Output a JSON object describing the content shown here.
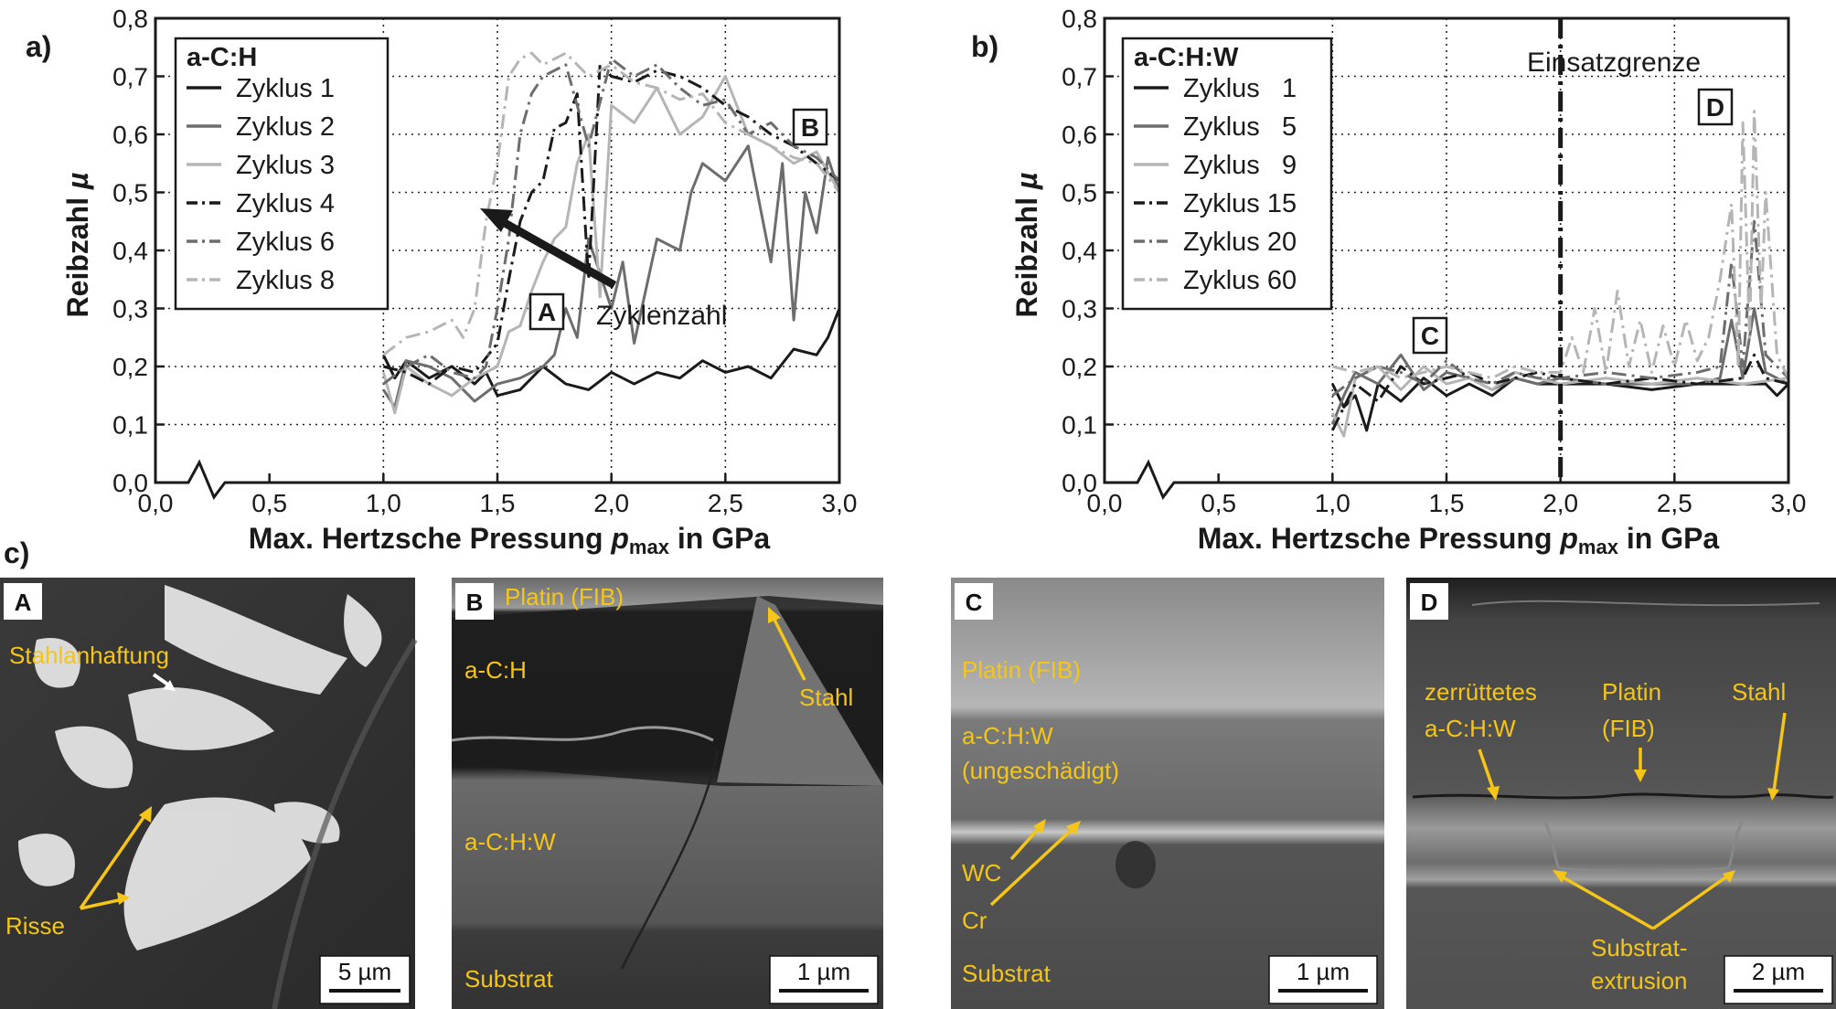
{
  "figure_labels": {
    "a": "a)",
    "b": "b)",
    "c": "c)"
  },
  "chart_data": [
    {
      "type": "line",
      "panel": "a)",
      "xlabel": "Max. Hertzsche Pressung p_max in GPa",
      "xlabel_parts": [
        "Max. Hertzsche Pressung ",
        "p",
        "max",
        " in GPa"
      ],
      "ylabel": "Reibzahl µ",
      "ylabel_parts": [
        "Reibzahl ",
        "µ"
      ],
      "xlim": [
        0,
        3.0
      ],
      "ylim": [
        0,
        0.8
      ],
      "x_ticks": [
        "0,0",
        "0,5",
        "1,0",
        "1,5",
        "2,0",
        "2,5",
        "3,0"
      ],
      "y_ticks": [
        "0,0",
        "0,1",
        "0,2",
        "0,3",
        "0,4",
        "0,5",
        "0,6",
        "0,7",
        "0,8"
      ],
      "axis_break": "0,0–1,0",
      "legend_title": "a-C:H",
      "series": [
        {
          "name": "Zyklus 1",
          "color": "#1a1a1a",
          "dash": "solid",
          "x": [
            1.0,
            1.05,
            1.1,
            1.2,
            1.3,
            1.4,
            1.45,
            1.5,
            1.6,
            1.7,
            1.8,
            1.9,
            2.0,
            2.1,
            2.2,
            2.3,
            2.4,
            2.5,
            2.6,
            2.7,
            2.8,
            2.9,
            2.95,
            3.0
          ],
          "y": [
            0.22,
            0.18,
            0.21,
            0.18,
            0.2,
            0.17,
            0.19,
            0.15,
            0.16,
            0.2,
            0.17,
            0.16,
            0.19,
            0.17,
            0.19,
            0.18,
            0.21,
            0.19,
            0.2,
            0.18,
            0.23,
            0.22,
            0.25,
            0.3
          ]
        },
        {
          "name": "Zyklus 2",
          "color": "#6d6d6d",
          "dash": "solid",
          "x": [
            1.0,
            1.05,
            1.1,
            1.2,
            1.3,
            1.4,
            1.5,
            1.6,
            1.7,
            1.75,
            1.8,
            1.85,
            1.9,
            2.0,
            2.05,
            2.1,
            2.2,
            2.3,
            2.35,
            2.4,
            2.5,
            2.6,
            2.7,
            2.75,
            2.8,
            2.85,
            2.9,
            2.95,
            3.0
          ],
          "y": [
            0.16,
            0.13,
            0.21,
            0.2,
            0.18,
            0.14,
            0.17,
            0.18,
            0.2,
            0.22,
            0.3,
            0.25,
            0.42,
            0.3,
            0.38,
            0.24,
            0.42,
            0.4,
            0.5,
            0.55,
            0.52,
            0.58,
            0.38,
            0.55,
            0.28,
            0.5,
            0.43,
            0.56,
            0.5
          ]
        },
        {
          "name": "Zyklus 3",
          "color": "#b5b5b5",
          "dash": "solid",
          "x": [
            1.0,
            1.05,
            1.1,
            1.2,
            1.3,
            1.4,
            1.5,
            1.55,
            1.6,
            1.65,
            1.7,
            1.75,
            1.8,
            1.85,
            1.9,
            1.95,
            2.0,
            2.1,
            2.2,
            2.3,
            2.4,
            2.5,
            2.6,
            2.7,
            2.8,
            2.9,
            3.0
          ],
          "y": [
            0.19,
            0.12,
            0.2,
            0.17,
            0.15,
            0.18,
            0.2,
            0.26,
            0.27,
            0.33,
            0.38,
            0.42,
            0.44,
            0.55,
            0.6,
            0.32,
            0.65,
            0.62,
            0.68,
            0.6,
            0.63,
            0.7,
            0.6,
            0.58,
            0.55,
            0.57,
            0.5
          ]
        },
        {
          "name": "Zyklus 4",
          "color": "#1a1a1a",
          "dash": "dashdot",
          "x": [
            1.0,
            1.1,
            1.2,
            1.3,
            1.4,
            1.5,
            1.55,
            1.6,
            1.65,
            1.7,
            1.75,
            1.8,
            1.85,
            1.9,
            1.95,
            2.0,
            2.1,
            2.2,
            2.3,
            2.4,
            2.5,
            2.6,
            2.7,
            2.8,
            2.9,
            3.0
          ],
          "y": [
            0.2,
            0.19,
            0.17,
            0.2,
            0.19,
            0.24,
            0.35,
            0.45,
            0.5,
            0.52,
            0.61,
            0.62,
            0.67,
            0.35,
            0.72,
            0.7,
            0.69,
            0.71,
            0.7,
            0.68,
            0.65,
            0.63,
            0.6,
            0.58,
            0.55,
            0.52
          ]
        },
        {
          "name": "Zyklus 6",
          "color": "#6d6d6d",
          "dash": "dashdot",
          "x": [
            1.0,
            1.1,
            1.2,
            1.3,
            1.4,
            1.45,
            1.5,
            1.55,
            1.6,
            1.65,
            1.7,
            1.8,
            1.9,
            2.0,
            2.1,
            2.2,
            2.3,
            2.4,
            2.5,
            2.6,
            2.7,
            2.8,
            2.9,
            3.0
          ],
          "y": [
            0.17,
            0.2,
            0.22,
            0.19,
            0.18,
            0.2,
            0.3,
            0.42,
            0.6,
            0.67,
            0.7,
            0.72,
            0.58,
            0.73,
            0.7,
            0.72,
            0.68,
            0.65,
            0.66,
            0.6,
            0.62,
            0.58,
            0.56,
            0.52
          ]
        },
        {
          "name": "Zyklus 8",
          "color": "#b5b5b5",
          "dash": "dashdot",
          "x": [
            1.0,
            1.1,
            1.2,
            1.3,
            1.35,
            1.4,
            1.45,
            1.5,
            1.55,
            1.6,
            1.65,
            1.7,
            1.8,
            1.9,
            2.0,
            2.1,
            2.2,
            2.3,
            2.4,
            2.5,
            2.6,
            2.7,
            2.8,
            2.9,
            3.0
          ],
          "y": [
            0.22,
            0.25,
            0.26,
            0.28,
            0.25,
            0.3,
            0.45,
            0.55,
            0.7,
            0.73,
            0.74,
            0.72,
            0.74,
            0.7,
            0.72,
            0.69,
            0.68,
            0.66,
            0.67,
            0.62,
            0.6,
            0.58,
            0.56,
            0.55,
            0.5
          ]
        }
      ],
      "annotations": [
        {
          "label": "A",
          "x": 1.85,
          "y": 0.3
        },
        {
          "label": "B",
          "x": 2.9,
          "y": 0.62
        },
        {
          "label": "Zyklenzahl",
          "type": "arrow",
          "from": [
            1.93,
            0.34
          ],
          "to": [
            1.68,
            0.47
          ]
        }
      ]
    },
    {
      "type": "line",
      "panel": "b)",
      "xlabel": "Max. Hertzsche Pressung p_max in GPa",
      "xlabel_parts": [
        "Max. Hertzsche Pressung ",
        "p",
        "max",
        " in GPa"
      ],
      "ylabel": "Reibzahl µ",
      "ylabel_parts": [
        "Reibzahl ",
        "µ"
      ],
      "xlim": [
        0,
        3.0
      ],
      "ylim": [
        0,
        0.8
      ],
      "x_ticks": [
        "0,0",
        "0,5",
        "1,0",
        "1,5",
        "2,0",
        "2,5",
        "3,0"
      ],
      "y_ticks": [
        "0,0",
        "0,1",
        "0,2",
        "0,3",
        "0,4",
        "0,5",
        "0,6",
        "0,7",
        "0,8"
      ],
      "axis_break": "0,0–1,0",
      "legend_title": "a-C:H:W",
      "vline": {
        "x": 2.0,
        "label": "Einsatzgrenze"
      },
      "series": [
        {
          "name": "Zyklus   1",
          "color": "#1a1a1a",
          "dash": "solid",
          "x": [
            1.0,
            1.05,
            1.1,
            1.15,
            1.2,
            1.3,
            1.4,
            1.5,
            1.6,
            1.7,
            1.8,
            1.9,
            2.0,
            2.2,
            2.4,
            2.6,
            2.8,
            2.9,
            2.95,
            3.0
          ],
          "y": [
            0.17,
            0.13,
            0.15,
            0.09,
            0.17,
            0.14,
            0.18,
            0.15,
            0.17,
            0.15,
            0.18,
            0.17,
            0.17,
            0.17,
            0.16,
            0.17,
            0.17,
            0.17,
            0.15,
            0.17
          ]
        },
        {
          "name": "Zyklus   5",
          "color": "#6d6d6d",
          "dash": "solid",
          "x": [
            1.0,
            1.05,
            1.1,
            1.2,
            1.3,
            1.4,
            1.5,
            1.6,
            1.7,
            1.8,
            1.9,
            2.0,
            2.2,
            2.4,
            2.6,
            2.7,
            2.75,
            2.8,
            2.85,
            2.9,
            3.0
          ],
          "y": [
            0.1,
            0.15,
            0.19,
            0.17,
            0.22,
            0.16,
            0.19,
            0.18,
            0.16,
            0.18,
            0.17,
            0.18,
            0.17,
            0.17,
            0.17,
            0.18,
            0.28,
            0.18,
            0.3,
            0.19,
            0.17
          ]
        },
        {
          "name": "Zyklus   9",
          "color": "#b5b5b5",
          "dash": "solid",
          "x": [
            1.0,
            1.05,
            1.1,
            1.2,
            1.3,
            1.4,
            1.5,
            1.6,
            1.7,
            1.8,
            1.9,
            2.0,
            2.2,
            2.4,
            2.6,
            2.8,
            3.0
          ],
          "y": [
            0.12,
            0.08,
            0.18,
            0.2,
            0.16,
            0.2,
            0.17,
            0.18,
            0.16,
            0.19,
            0.18,
            0.17,
            0.18,
            0.17,
            0.18,
            0.17,
            0.18
          ]
        },
        {
          "name": "Zyklus 15",
          "color": "#1a1a1a",
          "dash": "dashdot",
          "x": [
            1.0,
            1.1,
            1.2,
            1.3,
            1.4,
            1.5,
            1.6,
            1.7,
            1.8,
            1.9,
            2.0,
            2.2,
            2.4,
            2.6,
            2.8,
            2.85,
            2.9,
            3.0
          ],
          "y": [
            0.09,
            0.17,
            0.14,
            0.2,
            0.17,
            0.18,
            0.19,
            0.17,
            0.18,
            0.19,
            0.18,
            0.17,
            0.18,
            0.17,
            0.18,
            0.22,
            0.18,
            0.17
          ]
        },
        {
          "name": "Zyklus 20",
          "color": "#6d6d6d",
          "dash": "dashdot",
          "x": [
            1.0,
            1.1,
            1.2,
            1.3,
            1.4,
            1.5,
            1.6,
            1.7,
            1.8,
            1.9,
            2.0,
            2.2,
            2.4,
            2.6,
            2.7,
            2.75,
            2.8,
            2.85,
            2.9,
            3.0
          ],
          "y": [
            0.15,
            0.18,
            0.2,
            0.19,
            0.17,
            0.21,
            0.18,
            0.17,
            0.19,
            0.18,
            0.18,
            0.19,
            0.18,
            0.19,
            0.2,
            0.38,
            0.2,
            0.45,
            0.22,
            0.18
          ]
        },
        {
          "name": "Zyklus 60",
          "color": "#b5b5b5",
          "dash": "dashdot",
          "x": [
            1.0,
            1.1,
            1.2,
            1.3,
            1.4,
            1.5,
            1.6,
            1.7,
            1.8,
            1.9,
            2.0,
            2.05,
            2.1,
            2.15,
            2.2,
            2.25,
            2.3,
            2.35,
            2.4,
            2.45,
            2.5,
            2.55,
            2.6,
            2.65,
            2.7,
            2.75,
            2.78,
            2.8,
            2.83,
            2.85,
            2.88,
            2.9,
            2.95,
            3.0
          ],
          "y": [
            0.2,
            0.19,
            0.2,
            0.18,
            0.19,
            0.2,
            0.19,
            0.18,
            0.2,
            0.19,
            0.19,
            0.25,
            0.19,
            0.3,
            0.19,
            0.33,
            0.2,
            0.28,
            0.19,
            0.27,
            0.2,
            0.28,
            0.21,
            0.25,
            0.35,
            0.48,
            0.2,
            0.62,
            0.25,
            0.64,
            0.3,
            0.5,
            0.22,
            0.18
          ]
        }
      ],
      "annotations": [
        {
          "label": "C",
          "x": 1.35,
          "y": 0.26
        },
        {
          "label": "D",
          "x": 2.6,
          "y": 0.65
        }
      ]
    }
  ],
  "micrographs": [
    {
      "letter": "A",
      "scale": "5 µm",
      "labels": [
        {
          "text": "Stahlanhaftung"
        },
        {
          "text": "Risse"
        }
      ]
    },
    {
      "letter": "B",
      "scale": "1 µm",
      "labels": [
        {
          "text": "Platin (FIB)"
        },
        {
          "text": "a-C:H"
        },
        {
          "text": "Stahl"
        },
        {
          "text": "a-C:H:W"
        },
        {
          "text": "Substrat"
        }
      ]
    },
    {
      "letter": "C",
      "scale": "1 µm",
      "labels": [
        {
          "text": "Platin (FIB)"
        },
        {
          "text": "a-C:H:W"
        },
        {
          "text": "(ungeschädigt)"
        },
        {
          "text": "WC"
        },
        {
          "text": "Cr"
        },
        {
          "text": "Substrat"
        }
      ]
    },
    {
      "letter": "D",
      "scale": "2 µm",
      "labels": [
        {
          "text": "zerrüttetes"
        },
        {
          "text": "a-C:H:W"
        },
        {
          "text": "Platin"
        },
        {
          "text": "(FIB)"
        },
        {
          "text": "Stahl"
        },
        {
          "text": "Substrat-"
        },
        {
          "text": "extrusion"
        }
      ]
    }
  ]
}
